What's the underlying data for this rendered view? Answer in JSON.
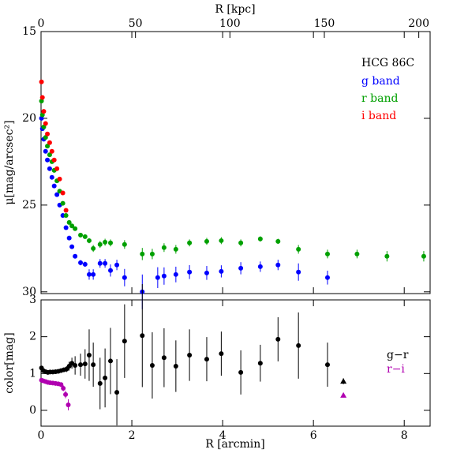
{
  "chart_data": [
    {
      "type": "scatter",
      "x_label": "R [kpc]",
      "y_label": "μ[mag/arcsec²]",
      "annotation": "HCG 86C",
      "xlim": [
        0,
        8.57
      ],
      "x2lim": [
        0,
        206
      ],
      "x2ticks": [
        0,
        50,
        100,
        150,
        200
      ],
      "ylim": [
        15,
        30.1
      ],
      "y_inverted": true,
      "yticks": [
        15,
        20,
        25,
        30
      ],
      "series": [
        {
          "name": "g band",
          "color": "#0000ff",
          "x": [
            0.01,
            0.03,
            0.06,
            0.1,
            0.14,
            0.19,
            0.24,
            0.29,
            0.35,
            0.41,
            0.48,
            0.55,
            0.62,
            0.68,
            0.75,
            0.87,
            0.97,
            1.06,
            1.15,
            1.3,
            1.41,
            1.53,
            1.67,
            1.84,
            2.23,
            2.57,
            2.71,
            2.97,
            3.27,
            3.65,
            3.97,
            4.4,
            4.83,
            5.22,
            5.67,
            6.31
          ],
          "values": [
            20.0,
            20.6,
            21.2,
            21.9,
            22.4,
            22.9,
            23.4,
            23.9,
            24.4,
            25.0,
            25.6,
            26.3,
            26.9,
            27.4,
            27.95,
            28.32,
            28.41,
            29.0,
            29.0,
            28.36,
            28.36,
            28.77,
            28.45,
            29.18,
            30.0,
            29.18,
            29.09,
            29.0,
            28.86,
            28.91,
            28.82,
            28.64,
            28.55,
            28.45,
            28.86,
            29.18
          ],
          "errors": [
            0.02,
            0.02,
            0.02,
            0.02,
            0.02,
            0.02,
            0.02,
            0.02,
            0.02,
            0.02,
            0.02,
            0.02,
            0.02,
            0.02,
            0.1,
            0.15,
            0.15,
            0.3,
            0.3,
            0.25,
            0.25,
            0.35,
            0.3,
            0.5,
            1.0,
            0.6,
            0.5,
            0.45,
            0.4,
            0.4,
            0.35,
            0.35,
            0.3,
            0.3,
            0.5,
            0.4
          ]
        },
        {
          "name": "r band",
          "color": "#00a000",
          "x": [
            0.01,
            0.03,
            0.06,
            0.1,
            0.14,
            0.19,
            0.24,
            0.29,
            0.35,
            0.41,
            0.48,
            0.55,
            0.62,
            0.68,
            0.75,
            0.87,
            0.97,
            1.06,
            1.15,
            1.3,
            1.41,
            1.53,
            1.84,
            2.23,
            2.45,
            2.71,
            2.97,
            3.27,
            3.65,
            3.97,
            4.4,
            4.83,
            5.22,
            5.67,
            6.31,
            6.96,
            7.62,
            8.43
          ],
          "values": [
            19.0,
            19.8,
            20.5,
            21.1,
            21.6,
            22.1,
            22.5,
            23.0,
            23.6,
            24.2,
            24.9,
            25.6,
            26.0,
            26.2,
            26.36,
            26.73,
            26.82,
            27.05,
            27.5,
            27.27,
            27.14,
            27.18,
            27.27,
            27.82,
            27.82,
            27.45,
            27.55,
            27.18,
            27.09,
            27.05,
            27.18,
            26.95,
            27.09,
            27.55,
            27.82,
            27.82,
            27.95,
            27.95
          ],
          "errors": [
            0.02,
            0.02,
            0.02,
            0.02,
            0.02,
            0.02,
            0.02,
            0.02,
            0.02,
            0.02,
            0.02,
            0.02,
            0.02,
            0.02,
            0.1,
            0.1,
            0.12,
            0.15,
            0.2,
            0.2,
            0.2,
            0.2,
            0.25,
            0.35,
            0.3,
            0.25,
            0.25,
            0.2,
            0.2,
            0.2,
            0.2,
            0.15,
            0.15,
            0.25,
            0.25,
            0.25,
            0.3,
            0.3
          ]
        },
        {
          "name": "i band",
          "color": "#ff0000",
          "x": [
            0.01,
            0.03,
            0.06,
            0.1,
            0.14,
            0.19,
            0.24,
            0.29,
            0.35,
            0.41,
            0.48,
            0.55
          ],
          "values": [
            17.9,
            18.8,
            19.6,
            20.3,
            20.9,
            21.4,
            21.9,
            22.4,
            22.9,
            23.5,
            24.3,
            25.3
          ],
          "errors": [
            0.02,
            0.02,
            0.02,
            0.02,
            0.02,
            0.02,
            0.02,
            0.02,
            0.02,
            0.02,
            0.02,
            0.02
          ]
        }
      ]
    },
    {
      "type": "scatter",
      "x_label": "R [arcmin]",
      "y_label": "color[mag]",
      "xlim": [
        0,
        8.57
      ],
      "xticks": [
        0,
        2,
        4,
        6,
        8
      ],
      "ylim": [
        -0.43,
        3
      ],
      "yticks": [
        0,
        1,
        2,
        3
      ],
      "series": [
        {
          "name": "g−r",
          "color": "#000000",
          "x": [
            0.01,
            0.05,
            0.1,
            0.15,
            0.2,
            0.26,
            0.32,
            0.38,
            0.44,
            0.5,
            0.56,
            0.62,
            0.68,
            0.75,
            0.87,
            0.97,
            1.06,
            1.15,
            1.3,
            1.41,
            1.53,
            1.67,
            1.84,
            2.23,
            2.45,
            2.71,
            2.97,
            3.27,
            3.65,
            3.97,
            4.4,
            4.83,
            5.22,
            5.67,
            6.31
          ],
          "values": [
            1.15,
            1.08,
            1.05,
            1.03,
            1.04,
            1.04,
            1.05,
            1.06,
            1.08,
            1.1,
            1.12,
            1.2,
            1.28,
            1.22,
            1.24,
            1.26,
            1.5,
            1.24,
            0.73,
            0.88,
            1.34,
            0.49,
            1.88,
            2.03,
            1.22,
            1.43,
            1.2,
            1.5,
            1.39,
            1.54,
            1.03,
            1.28,
            1.93,
            1.76,
            1.24
          ],
          "errors": [
            0.03,
            0.03,
            0.03,
            0.03,
            0.03,
            0.03,
            0.04,
            0.04,
            0.05,
            0.06,
            0.08,
            0.12,
            0.15,
            0.25,
            0.3,
            0.4,
            0.7,
            0.6,
            0.7,
            0.8,
            0.9,
            0.9,
            1.0,
            1.4,
            0.9,
            0.8,
            0.7,
            0.7,
            0.6,
            0.6,
            0.6,
            0.5,
            0.6,
            0.9,
            0.6
          ],
          "outer_point": {
            "x": 6.66,
            "value": 0.79,
            "error": 0.08
          }
        },
        {
          "name": "r−i",
          "color": "#b000b0",
          "x": [
            0.01,
            0.05,
            0.1,
            0.15,
            0.2,
            0.26,
            0.32,
            0.38,
            0.44,
            0.49,
            0.54,
            0.6
          ],
          "values": [
            0.82,
            0.8,
            0.78,
            0.76,
            0.75,
            0.74,
            0.73,
            0.72,
            0.7,
            0.6,
            0.43,
            0.15
          ],
          "errors": [
            0.03,
            0.03,
            0.03,
            0.03,
            0.03,
            0.03,
            0.03,
            0.04,
            0.05,
            0.08,
            0.1,
            0.15
          ],
          "outer_point": {
            "x": 6.66,
            "value": 0.41,
            "error": 0.06
          }
        }
      ]
    }
  ]
}
